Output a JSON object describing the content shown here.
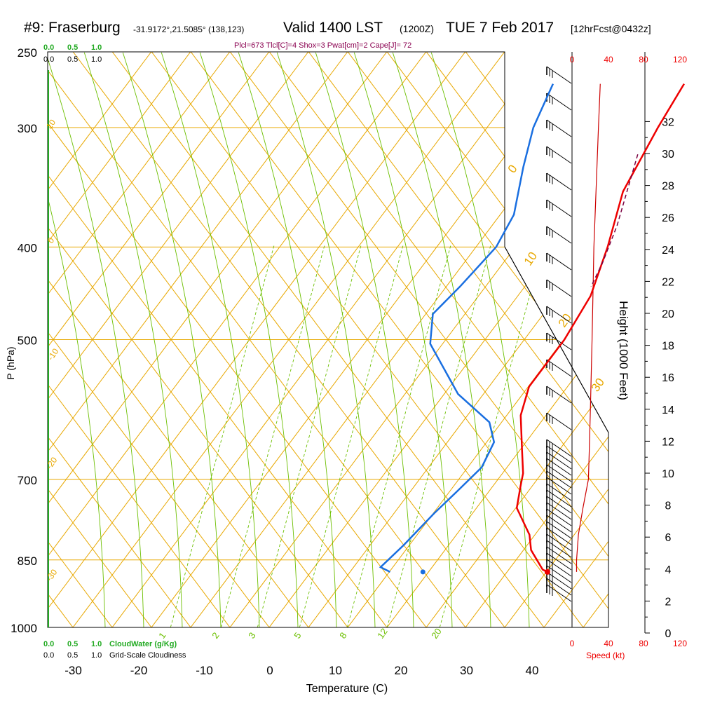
{
  "header": {
    "station": "#9: Fraserburg",
    "coords": "-31.9172°,21.5085° (138,123)",
    "valid": "Valid 1400 LST",
    "utc": "(1200Z)",
    "date": "TUE 7 Feb 2017",
    "forecast": "[12hrFcst@0432z]"
  },
  "indices": "Plcl=673 Tlcl[C]=4 Shox=3 Pwat[cm]=2 Cape[J]= 72",
  "colors": {
    "isotherm": "#e8a800",
    "mixing_ratio": "#6cbf00",
    "temperature": "#ee0000",
    "dewpoint": "#1a6fe0",
    "parcel": "#7a0040",
    "cloud": "#22aa22",
    "wind": "#000000"
  },
  "cloud_scale": {
    "top_green": [
      "0.0",
      "0.5",
      "1.0"
    ],
    "top_black": [
      "0.0",
      "0.5",
      "1.0"
    ],
    "bottom_green": [
      "0.0",
      "0.5",
      "1.0"
    ],
    "bottom_green_label": "CloudWater (g/Kg)",
    "bottom_black": [
      "0.0",
      "0.5",
      "1.0"
    ],
    "bottom_black_label": "Grid-Scale Cloudiness"
  },
  "wind_speed_scale": {
    "top": [
      "0",
      "40",
      "80",
      "120"
    ],
    "bottom": [
      "0",
      "40",
      "80",
      "120"
    ],
    "label": "Speed (kt)"
  },
  "chart_data": {
    "type": "line",
    "title": "",
    "xlabel": "Temperature (C)",
    "ylabel": "P (hPa)",
    "y2label": "Height (1000 Feet)",
    "x_ticks": [
      -30,
      -20,
      -10,
      0,
      10,
      20,
      30,
      40
    ],
    "p_ticks": [
      250,
      300,
      400,
      500,
      700,
      850,
      1000
    ],
    "height_ticks": [
      0,
      2,
      4,
      6,
      8,
      10,
      12,
      14,
      16,
      18,
      20,
      22,
      24,
      26,
      28,
      30,
      32
    ],
    "isotherm_labels": [
      "10",
      "0",
      "-10",
      "-20",
      "-30",
      "0",
      "10",
      "20",
      "30"
    ],
    "mixing_ratio_labels": [
      "1",
      "2",
      "3",
      "5",
      "8",
      "12",
      "20"
    ],
    "series": [
      {
        "name": "temperature",
        "points": [
          [
            1,
            270
          ],
          [
            2,
            300
          ],
          [
            4,
            350
          ],
          [
            8,
            400
          ],
          [
            11,
            450
          ],
          [
            12,
            500
          ],
          [
            12,
            560
          ],
          [
            14,
            600
          ],
          [
            18,
            650
          ],
          [
            21,
            690
          ],
          [
            22,
            710
          ],
          [
            24,
            750
          ],
          [
            29,
            800
          ],
          [
            31,
            830
          ],
          [
            35,
            870
          ],
          [
            36,
            875
          ]
        ]
      },
      {
        "name": "dewpoint",
        "points": [
          [
            -19,
            270
          ],
          [
            -17,
            300
          ],
          [
            -14,
            330
          ],
          [
            -10,
            370
          ],
          [
            -9,
            400
          ],
          [
            -10,
            440
          ],
          [
            -11,
            470
          ],
          [
            -8,
            505
          ],
          [
            2,
            570
          ],
          [
            10,
            610
          ],
          [
            13,
            640
          ],
          [
            14,
            680
          ],
          [
            13,
            720
          ],
          [
            12,
            760
          ],
          [
            11,
            820
          ],
          [
            10,
            865
          ],
          [
            12,
            875
          ]
        ]
      },
      {
        "name": "parcel",
        "points": [
          [
            2,
            320
          ],
          [
            7,
            380
          ],
          [
            9,
            415
          ],
          [
            10,
            440
          ]
        ]
      },
      {
        "name": "surface",
        "points": [
          [
            36,
            875
          ],
          [
            17,
            875
          ]
        ]
      }
    ],
    "wind_speed_profile_kt": [
      [
        31,
        270
      ],
      [
        29,
        300
      ],
      [
        24,
        400
      ],
      [
        22,
        500
      ],
      [
        20,
        600
      ],
      [
        19,
        650
      ],
      [
        18,
        700
      ],
      [
        12,
        750
      ],
      [
        7,
        800
      ],
      [
        5,
        850
      ],
      [
        5,
        875
      ]
    ]
  }
}
